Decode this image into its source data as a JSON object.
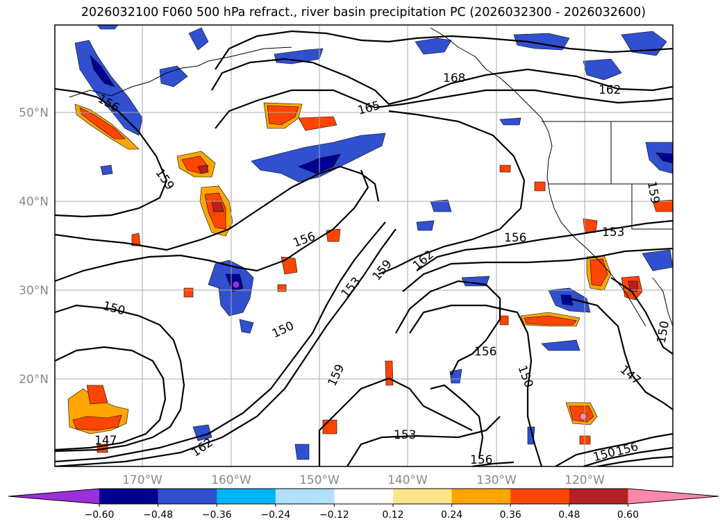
{
  "title": "2026032100 F060 500 hPa refract., river basin precipitation PC (2026032300 - 2026032600)",
  "map": {
    "lat_labels": [
      "50°N",
      "40°N",
      "30°N",
      "20°N"
    ],
    "lon_labels": [
      "170°W",
      "160°W",
      "150°W",
      "140°W",
      "130°W",
      "120°W"
    ],
    "contour_labels": [
      "156",
      "168",
      "162",
      "165",
      "159",
      "156",
      "153",
      "153",
      "159",
      "162",
      "156",
      "150",
      "150",
      "159",
      "156",
      "150",
      "147",
      "150",
      "147",
      "162",
      "153",
      "156",
      "150",
      "156",
      "159"
    ]
  },
  "colorbar": {
    "tick_labels": [
      "−0.60",
      "−0.48",
      "−0.36",
      "−0.24",
      "−0.12",
      "0.12",
      "0.24",
      "0.36",
      "0.48",
      "0.60"
    ],
    "colors": [
      "#9b30d9",
      "#000090",
      "#3050d0",
      "#00b4f5",
      "#b0e0fa",
      "#ffffff",
      "#fde68a",
      "#ffa500",
      "#ff4500",
      "#b22222",
      "#ff88aa"
    ]
  }
}
